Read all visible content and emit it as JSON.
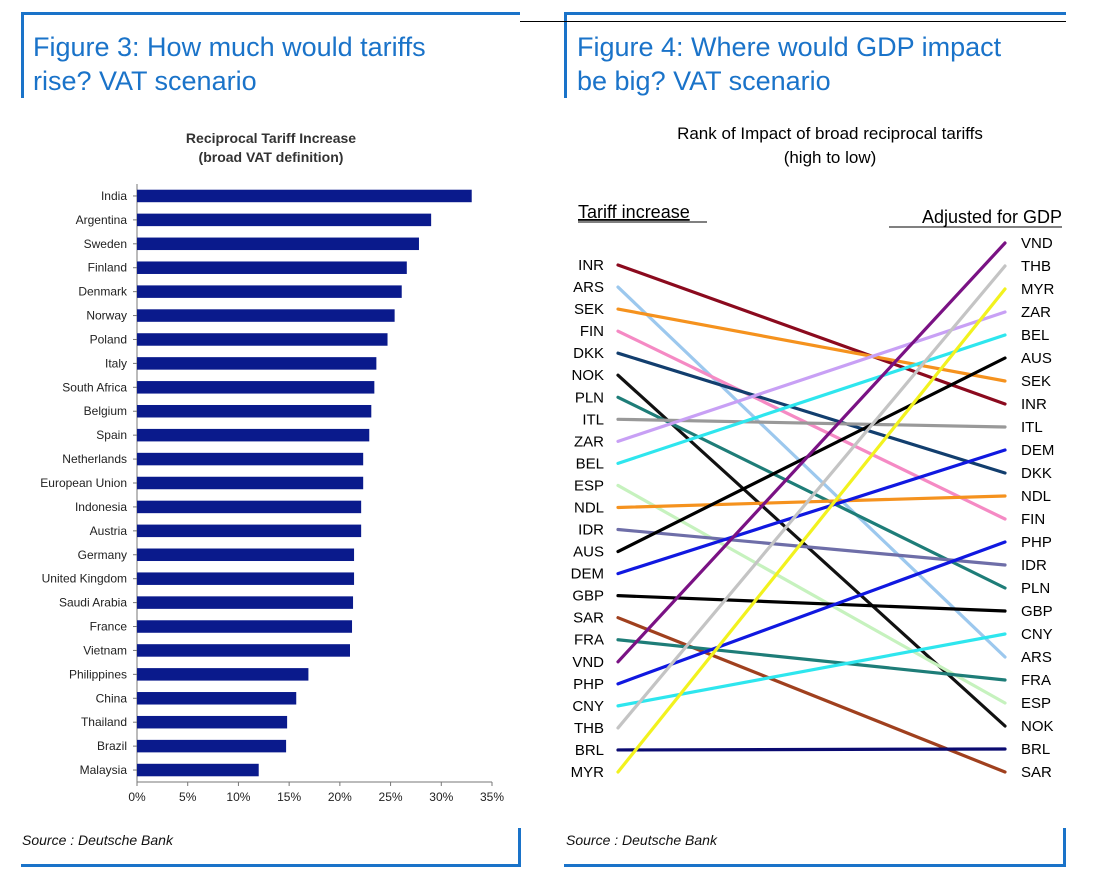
{
  "figure3": {
    "title_line1": "Figure 3: How much would tariffs",
    "title_line2": "rise? VAT scenario",
    "source": "Source : Deutsche Bank"
  },
  "figure4": {
    "title_line1": "Figure 4: Where would GDP impact",
    "title_line2": "be big? VAT scenario",
    "source": "Source : Deutsche Bank"
  },
  "colors": {
    "accent": "#1a73c9",
    "bar": "#0a1a8c"
  },
  "chart_data": [
    {
      "type": "bar",
      "orientation": "horizontal",
      "title": "Reciprocal Tariff Increase",
      "subtitle": "(broad VAT definition)",
      "categories": [
        "India",
        "Argentina",
        "Sweden",
        "Finland",
        "Denmark",
        "Norway",
        "Poland",
        "Italy",
        "South Africa",
        "Belgium",
        "Spain",
        "Netherlands",
        "European Union",
        "Indonesia",
        "Austria",
        "Germany",
        "United Kingdom",
        "Saudi Arabia",
        "France",
        "Vietnam",
        "Philippines",
        "China",
        "Thailand",
        "Brazil",
        "Malaysia"
      ],
      "values": [
        0.33,
        0.29,
        0.278,
        0.266,
        0.261,
        0.254,
        0.247,
        0.236,
        0.234,
        0.231,
        0.229,
        0.223,
        0.223,
        0.221,
        0.221,
        0.214,
        0.214,
        0.213,
        0.212,
        0.21,
        0.169,
        0.157,
        0.148,
        0.147,
        0.12
      ],
      "xlim": [
        0,
        0.35
      ],
      "xticks": [
        0,
        0.05,
        0.1,
        0.15,
        0.2,
        0.25,
        0.3,
        0.35
      ],
      "xtick_labels": [
        "0%",
        "5%",
        "10%",
        "15%",
        "20%",
        "25%",
        "30%",
        "35%"
      ],
      "xlabel": "",
      "ylabel": "",
      "grid": false,
      "legend": "none"
    },
    {
      "type": "line",
      "subtype": "slope",
      "title": "Rank of Impact of broad reciprocal tariffs",
      "subtitle": "(high to low)",
      "left_header": "Tariff increase",
      "right_header": "Adjusted for GDP",
      "left_labels": [
        "INR",
        "ARS",
        "SEK",
        "FIN",
        "DKK",
        "NOK",
        "PLN",
        "ITL",
        "ZAR",
        "BEL",
        "ESP",
        "NDL",
        "IDR",
        "AUS",
        "DEM",
        "GBP",
        "SAR",
        "FRA",
        "VND",
        "PHP",
        "CNY",
        "THB",
        "BRL",
        "MYR"
      ],
      "right_labels": [
        "VND",
        "THB",
        "MYR",
        "ZAR",
        "BEL",
        "AUS",
        "SEK",
        "INR",
        "ITL",
        "DEM",
        "DKK",
        "NDL",
        "FIN",
        "PHP",
        "IDR",
        "PLN",
        "GBP",
        "CNY",
        "ARS",
        "FRA",
        "ESP",
        "NOK",
        "BRL",
        "SAR"
      ],
      "lines": [
        {
          "name": "INR",
          "left_rank": 1,
          "right_rank": 8,
          "color": "#8b0a1e"
        },
        {
          "name": "ARS",
          "left_rank": 2,
          "right_rank": 19,
          "color": "#9cc8ee"
        },
        {
          "name": "SEK",
          "left_rank": 3,
          "right_rank": 7,
          "color": "#f5921e"
        },
        {
          "name": "FIN",
          "left_rank": 4,
          "right_rank": 13,
          "color": "#f58ac4"
        },
        {
          "name": "DKK",
          "left_rank": 5,
          "right_rank": 11,
          "color": "#123e6e"
        },
        {
          "name": "NOK",
          "left_rank": 6,
          "right_rank": 22,
          "color": "#111111"
        },
        {
          "name": "PLN",
          "left_rank": 7,
          "right_rank": 16,
          "color": "#1e7d78"
        },
        {
          "name": "ITL",
          "left_rank": 8,
          "right_rank": 9,
          "color": "#999999"
        },
        {
          "name": "ZAR",
          "left_rank": 9,
          "right_rank": 4,
          "color": "#c8a0f5"
        },
        {
          "name": "BEL",
          "left_rank": 10,
          "right_rank": 5,
          "color": "#2ee6ee"
        },
        {
          "name": "ESP",
          "left_rank": 11,
          "right_rank": 21,
          "color": "#c6f2be"
        },
        {
          "name": "NDL",
          "left_rank": 12,
          "right_rank": 12,
          "color": "#f5921e"
        },
        {
          "name": "IDR",
          "left_rank": 13,
          "right_rank": 15,
          "color": "#6e6ea8"
        },
        {
          "name": "AUS",
          "left_rank": 14,
          "right_rank": 6,
          "color": "#000000"
        },
        {
          "name": "DEM",
          "left_rank": 15,
          "right_rank": 10,
          "color": "#1018e0"
        },
        {
          "name": "GBP",
          "left_rank": 16,
          "right_rank": 17,
          "color": "#000000"
        },
        {
          "name": "SAR",
          "left_rank": 17,
          "right_rank": 24,
          "color": "#a0401e"
        },
        {
          "name": "FRA",
          "left_rank": 18,
          "right_rank": 20,
          "color": "#1e7d78"
        },
        {
          "name": "VND",
          "left_rank": 19,
          "right_rank": 1,
          "color": "#7a1284"
        },
        {
          "name": "PHP",
          "left_rank": 20,
          "right_rank": 14,
          "color": "#1018e0"
        },
        {
          "name": "CNY",
          "left_rank": 21,
          "right_rank": 18,
          "color": "#2ee6ee"
        },
        {
          "name": "THB",
          "left_rank": 22,
          "right_rank": 2,
          "color": "#c4c4c4"
        },
        {
          "name": "BRL",
          "left_rank": 23,
          "right_rank": 23,
          "color": "#0a0a70"
        },
        {
          "name": "MYR",
          "left_rank": 24,
          "right_rank": 3,
          "color": "#f2f21e"
        }
      ]
    }
  ]
}
